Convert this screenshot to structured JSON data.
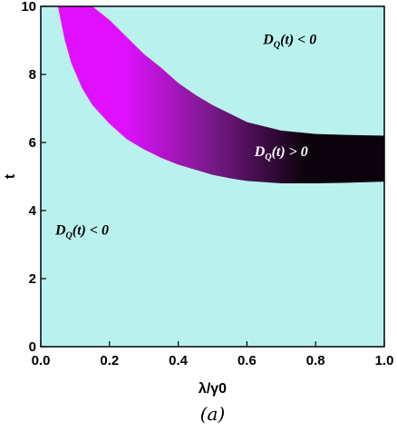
{
  "chart_data": {
    "type": "region",
    "xlabel": "λ/γ0",
    "ylabel": "t",
    "caption": "(a)",
    "xlim": [
      0,
      1
    ],
    "ylim": [
      0,
      10
    ],
    "xticks": [
      {
        "value": 0.0,
        "label": "0.0"
      },
      {
        "value": 0.2,
        "label": "0.2"
      },
      {
        "value": 0.4,
        "label": "0.4"
      },
      {
        "value": 0.6,
        "label": "0.6"
      },
      {
        "value": 0.8,
        "label": "0.8"
      },
      {
        "value": 1.0,
        "label": "1.0"
      }
    ],
    "yticks": [
      {
        "value": 0,
        "label": "0"
      },
      {
        "value": 2,
        "label": "2"
      },
      {
        "value": 4,
        "label": "4"
      },
      {
        "value": 6,
        "label": "6"
      },
      {
        "value": 8,
        "label": "8"
      },
      {
        "value": 10,
        "label": "10"
      }
    ],
    "background_color": "#b9f1ee",
    "band_colors": {
      "bright": "#e010ff",
      "mid": "#7a1a8a",
      "dark": "#0c020c"
    },
    "band_upper": [
      {
        "x": 0.15,
        "t": 10.0
      },
      {
        "x": 0.2,
        "t": 9.6
      },
      {
        "x": 0.25,
        "t": 9.1
      },
      {
        "x": 0.3,
        "t": 8.6
      },
      {
        "x": 0.35,
        "t": 8.2
      },
      {
        "x": 0.4,
        "t": 7.75
      },
      {
        "x": 0.45,
        "t": 7.4
      },
      {
        "x": 0.5,
        "t": 7.1
      },
      {
        "x": 0.55,
        "t": 6.85
      },
      {
        "x": 0.6,
        "t": 6.6
      },
      {
        "x": 0.7,
        "t": 6.35
      },
      {
        "x": 0.8,
        "t": 6.25
      },
      {
        "x": 0.9,
        "t": 6.22
      },
      {
        "x": 1.0,
        "t": 6.2
      }
    ],
    "band_lower": [
      {
        "x": 0.05,
        "t": 10.0
      },
      {
        "x": 0.07,
        "t": 9.0
      },
      {
        "x": 0.09,
        "t": 8.3
      },
      {
        "x": 0.12,
        "t": 7.6
      },
      {
        "x": 0.15,
        "t": 7.1
      },
      {
        "x": 0.2,
        "t": 6.55
      },
      {
        "x": 0.25,
        "t": 6.1
      },
      {
        "x": 0.3,
        "t": 5.8
      },
      {
        "x": 0.35,
        "t": 5.55
      },
      {
        "x": 0.4,
        "t": 5.35
      },
      {
        "x": 0.45,
        "t": 5.2
      },
      {
        "x": 0.5,
        "t": 5.05
      },
      {
        "x": 0.55,
        "t": 4.95
      },
      {
        "x": 0.6,
        "t": 4.87
      },
      {
        "x": 0.7,
        "t": 4.8
      },
      {
        "x": 0.8,
        "t": 4.8
      },
      {
        "x": 0.9,
        "t": 4.82
      },
      {
        "x": 1.0,
        "t": 4.85
      }
    ],
    "annotations": [
      {
        "text_main": "D",
        "text_sub": "Q",
        "text_rest": "(t) < 0",
        "x": 0.725,
        "t": 8.9,
        "tone": "dark"
      },
      {
        "text_main": "D",
        "text_sub": "Q",
        "text_rest": "(t) > 0",
        "x": 0.7,
        "t": 5.6,
        "tone": "light"
      },
      {
        "text_main": "D",
        "text_sub": "Q",
        "text_rest": "(t) < 0",
        "x": 0.12,
        "t": 3.3,
        "tone": "dark"
      }
    ]
  }
}
